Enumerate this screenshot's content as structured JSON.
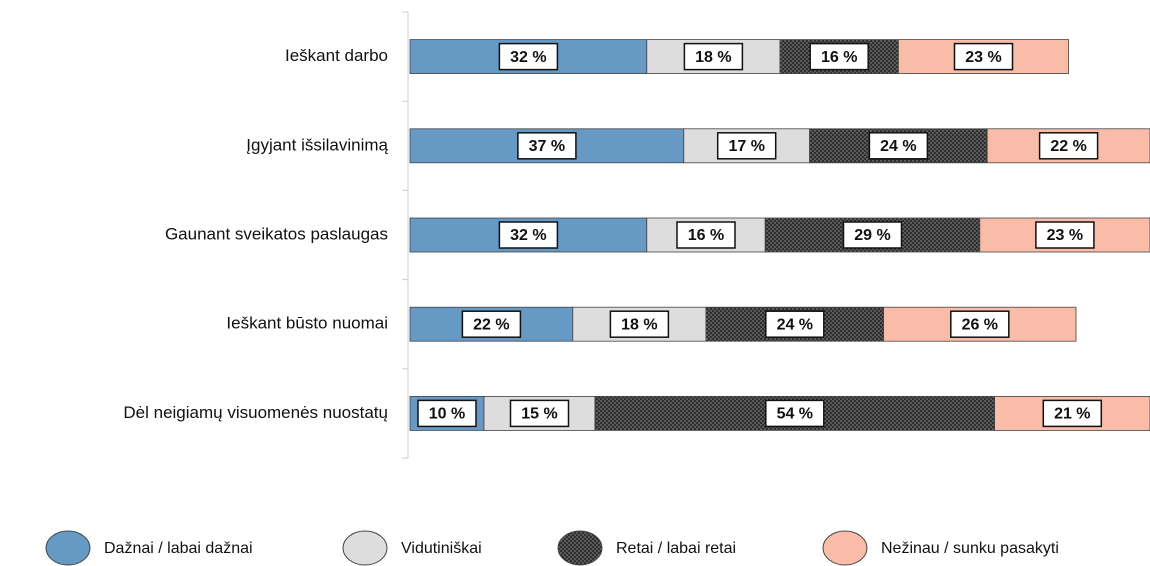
{
  "chart_data": {
    "type": "stacked_bar_horizontal",
    "categories": [
      "Ieškant darbo",
      "Įgyjant išsilavinimą",
      "Gaunant sveikatos paslaugas",
      "Ieškant būsto nuomai",
      "Dėl neigiamų visuomenės nuostatų"
    ],
    "xlim": [
      0,
      100
    ],
    "series": [
      {
        "name": "Dažnai / labai dažnai",
        "color": "#6699c4",
        "values": [
          32,
          37,
          32,
          22,
          10
        ],
        "value_labels": [
          "32 %",
          "37 %",
          "32 %",
          "22 %",
          "10 %"
        ]
      },
      {
        "name": "Vidutiniškai",
        "color": "#dddddd",
        "values": [
          18,
          17,
          16,
          18,
          15
        ],
        "value_labels": [
          "18 %",
          "17 %",
          "16 %",
          "18 %",
          "15 %"
        ]
      },
      {
        "name": "Retai / labai retai",
        "color": "#2f2f2f",
        "pattern": "dots",
        "values": [
          16,
          24,
          29,
          24,
          54
        ],
        "value_labels": [
          "16 %",
          "24 %",
          "29 %",
          "24 %",
          "54 %"
        ]
      },
      {
        "name": "Nežinau / sunku pasakyti",
        "color": "#f9bca9",
        "values": [
          23,
          22,
          23,
          26,
          21
        ],
        "value_labels": [
          "23 %",
          "22 %",
          "23 %",
          "26 %",
          "21 %"
        ]
      }
    ]
  }
}
